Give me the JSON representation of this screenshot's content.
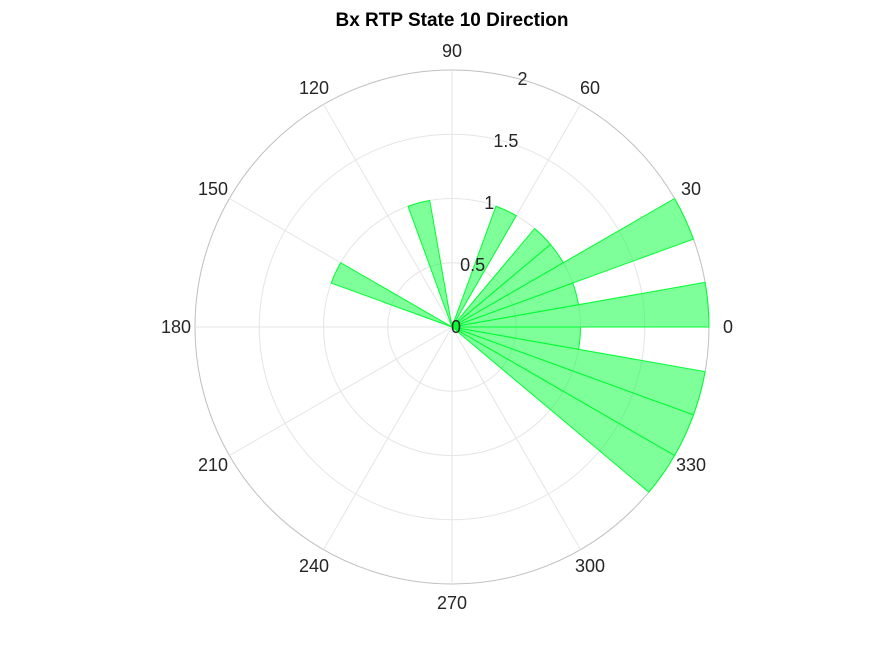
{
  "chart_data": {
    "type": "polar-histogram",
    "title": "Bx  RTP State 10 Direction",
    "theta_ticks": [
      "0",
      "30",
      "60",
      "90",
      "120",
      "150",
      "180",
      "210",
      "240",
      "270",
      "300",
      "330"
    ],
    "r_ticks": [
      "0",
      "0.5",
      "1",
      "1.5",
      "2"
    ],
    "rlim": [
      0,
      2
    ],
    "bin_width_deg": 10,
    "bins": [
      {
        "center_deg": -35,
        "value": 2.0
      },
      {
        "center_deg": -25,
        "value": 2.0
      },
      {
        "center_deg": -15,
        "value": 2.0
      },
      {
        "center_deg": 5,
        "value": 2.0
      },
      {
        "center_deg": 25,
        "value": 2.0
      },
      {
        "center_deg": -5,
        "value": 1.0
      },
      {
        "center_deg": 15,
        "value": 1.0
      },
      {
        "center_deg": 35,
        "value": 1.0
      },
      {
        "center_deg": 45,
        "value": 1.0
      },
      {
        "center_deg": 65,
        "value": 1.0
      },
      {
        "center_deg": 105,
        "value": 1.0
      },
      {
        "center_deg": 155,
        "value": 1.0
      }
    ],
    "bar_color": "#00ff33",
    "bar_fill_opacity": 0.5,
    "grid": true,
    "grid_color": "#e5e5e5",
    "outer_ring_color": "#bfbfbf"
  }
}
